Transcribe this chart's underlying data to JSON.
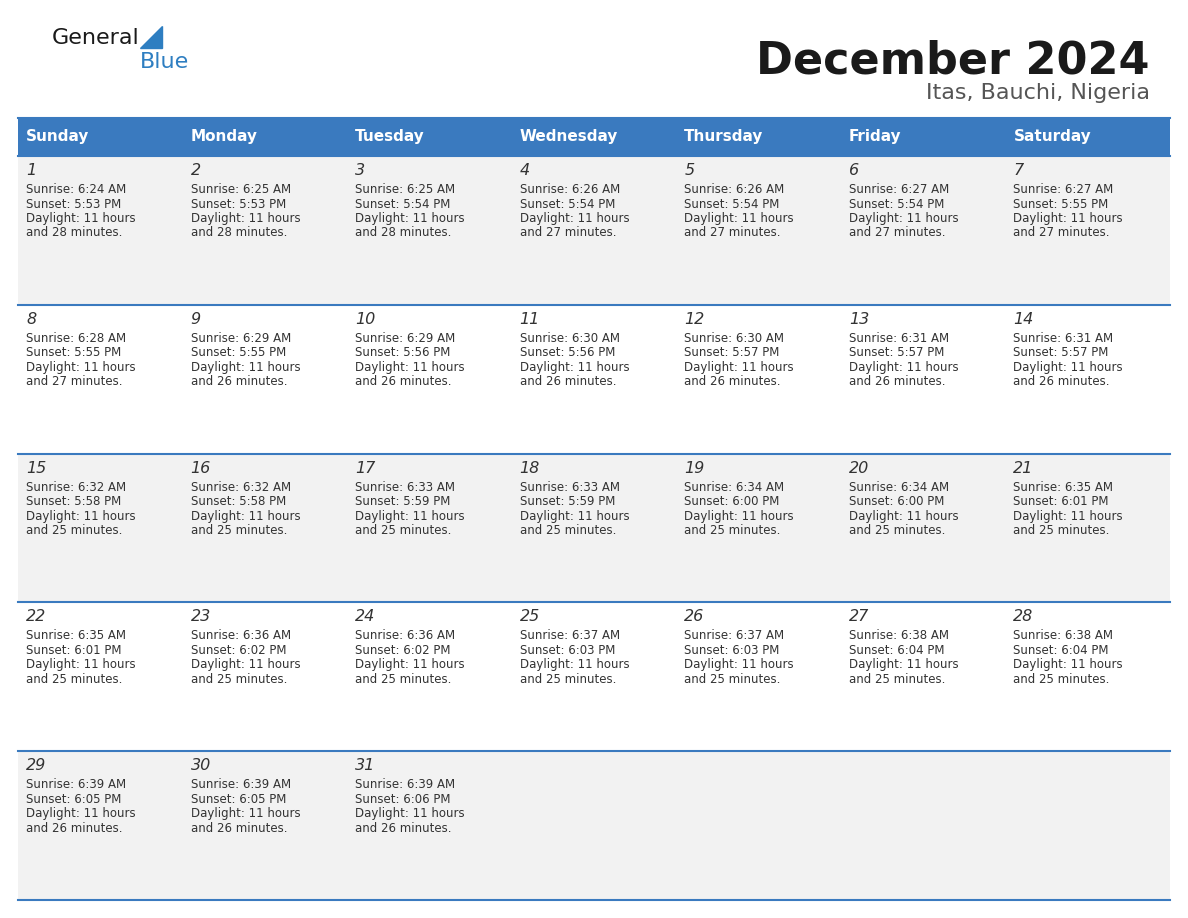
{
  "title": "December 2024",
  "subtitle": "Itas, Bauchi, Nigeria",
  "header_color": "#3a7abf",
  "header_text_color": "#ffffff",
  "days_of_week": [
    "Sunday",
    "Monday",
    "Tuesday",
    "Wednesday",
    "Thursday",
    "Friday",
    "Saturday"
  ],
  "cell_bg_odd": "#f2f2f2",
  "cell_bg_even": "#ffffff",
  "divider_color": "#3a7abf",
  "text_color": "#333333",
  "logo_general_color": "#1a1a1a",
  "logo_blue_color": "#2e7ec1",
  "title_color": "#1a1a1a",
  "subtitle_color": "#555555",
  "weeks": [
    [
      {
        "day": 1,
        "sunrise": "6:24 AM",
        "sunset": "5:53 PM",
        "daylight": "11 hours and 28 minutes."
      },
      {
        "day": 2,
        "sunrise": "6:25 AM",
        "sunset": "5:53 PM",
        "daylight": "11 hours and 28 minutes."
      },
      {
        "day": 3,
        "sunrise": "6:25 AM",
        "sunset": "5:54 PM",
        "daylight": "11 hours and 28 minutes."
      },
      {
        "day": 4,
        "sunrise": "6:26 AM",
        "sunset": "5:54 PM",
        "daylight": "11 hours and 27 minutes."
      },
      {
        "day": 5,
        "sunrise": "6:26 AM",
        "sunset": "5:54 PM",
        "daylight": "11 hours and 27 minutes."
      },
      {
        "day": 6,
        "sunrise": "6:27 AM",
        "sunset": "5:54 PM",
        "daylight": "11 hours and 27 minutes."
      },
      {
        "day": 7,
        "sunrise": "6:27 AM",
        "sunset": "5:55 PM",
        "daylight": "11 hours and 27 minutes."
      }
    ],
    [
      {
        "day": 8,
        "sunrise": "6:28 AM",
        "sunset": "5:55 PM",
        "daylight": "11 hours and 27 minutes."
      },
      {
        "day": 9,
        "sunrise": "6:29 AM",
        "sunset": "5:55 PM",
        "daylight": "11 hours and 26 minutes."
      },
      {
        "day": 10,
        "sunrise": "6:29 AM",
        "sunset": "5:56 PM",
        "daylight": "11 hours and 26 minutes."
      },
      {
        "day": 11,
        "sunrise": "6:30 AM",
        "sunset": "5:56 PM",
        "daylight": "11 hours and 26 minutes."
      },
      {
        "day": 12,
        "sunrise": "6:30 AM",
        "sunset": "5:57 PM",
        "daylight": "11 hours and 26 minutes."
      },
      {
        "day": 13,
        "sunrise": "6:31 AM",
        "sunset": "5:57 PM",
        "daylight": "11 hours and 26 minutes."
      },
      {
        "day": 14,
        "sunrise": "6:31 AM",
        "sunset": "5:57 PM",
        "daylight": "11 hours and 26 minutes."
      }
    ],
    [
      {
        "day": 15,
        "sunrise": "6:32 AM",
        "sunset": "5:58 PM",
        "daylight": "11 hours and 25 minutes."
      },
      {
        "day": 16,
        "sunrise": "6:32 AM",
        "sunset": "5:58 PM",
        "daylight": "11 hours and 25 minutes."
      },
      {
        "day": 17,
        "sunrise": "6:33 AM",
        "sunset": "5:59 PM",
        "daylight": "11 hours and 25 minutes."
      },
      {
        "day": 18,
        "sunrise": "6:33 AM",
        "sunset": "5:59 PM",
        "daylight": "11 hours and 25 minutes."
      },
      {
        "day": 19,
        "sunrise": "6:34 AM",
        "sunset": "6:00 PM",
        "daylight": "11 hours and 25 minutes."
      },
      {
        "day": 20,
        "sunrise": "6:34 AM",
        "sunset": "6:00 PM",
        "daylight": "11 hours and 25 minutes."
      },
      {
        "day": 21,
        "sunrise": "6:35 AM",
        "sunset": "6:01 PM",
        "daylight": "11 hours and 25 minutes."
      }
    ],
    [
      {
        "day": 22,
        "sunrise": "6:35 AM",
        "sunset": "6:01 PM",
        "daylight": "11 hours and 25 minutes."
      },
      {
        "day": 23,
        "sunrise": "6:36 AM",
        "sunset": "6:02 PM",
        "daylight": "11 hours and 25 minutes."
      },
      {
        "day": 24,
        "sunrise": "6:36 AM",
        "sunset": "6:02 PM",
        "daylight": "11 hours and 25 minutes."
      },
      {
        "day": 25,
        "sunrise": "6:37 AM",
        "sunset": "6:03 PM",
        "daylight": "11 hours and 25 minutes."
      },
      {
        "day": 26,
        "sunrise": "6:37 AM",
        "sunset": "6:03 PM",
        "daylight": "11 hours and 25 minutes."
      },
      {
        "day": 27,
        "sunrise": "6:38 AM",
        "sunset": "6:04 PM",
        "daylight": "11 hours and 25 minutes."
      },
      {
        "day": 28,
        "sunrise": "6:38 AM",
        "sunset": "6:04 PM",
        "daylight": "11 hours and 25 minutes."
      }
    ],
    [
      {
        "day": 29,
        "sunrise": "6:39 AM",
        "sunset": "6:05 PM",
        "daylight": "11 hours and 26 minutes."
      },
      {
        "day": 30,
        "sunrise": "6:39 AM",
        "sunset": "6:05 PM",
        "daylight": "11 hours and 26 minutes."
      },
      {
        "day": 31,
        "sunrise": "6:39 AM",
        "sunset": "6:06 PM",
        "daylight": "11 hours and 26 minutes."
      },
      null,
      null,
      null,
      null
    ]
  ]
}
